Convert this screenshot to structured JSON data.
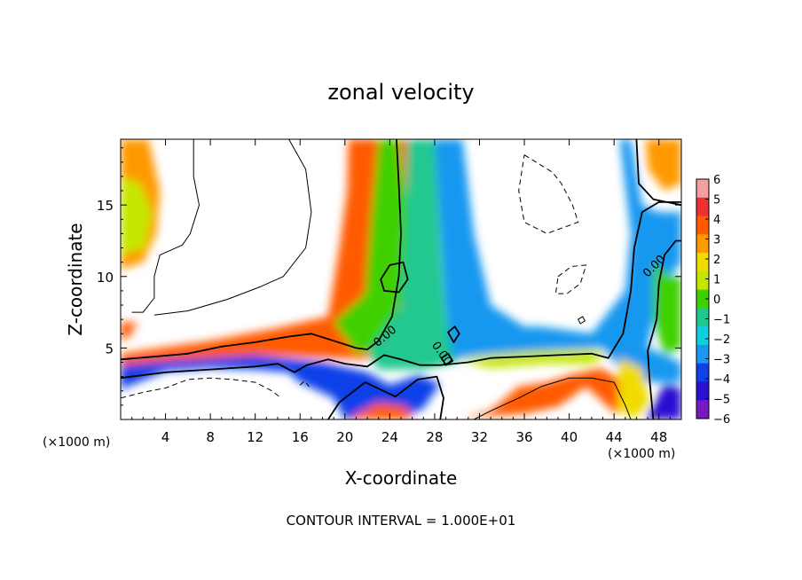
{
  "chart_data": {
    "type": "heatmap",
    "title": "zonal velocity",
    "xlabel": "X-coordinate",
    "ylabel": "Z-coordinate",
    "x_unit": "(×1000 m)",
    "y_unit": "(×1000 m)",
    "xlim": [
      0,
      50
    ],
    "ylim": [
      0,
      19.6
    ],
    "x_ticks": [
      4,
      8,
      12,
      16,
      20,
      24,
      28,
      32,
      36,
      40,
      44,
      48
    ],
    "y_ticks": [
      5,
      10,
      15
    ],
    "contour_interval_text": "CONTOUR INTERVAL = 1.000E+01",
    "contour_labels": [
      "0.00",
      "0.00",
      "0.00"
    ],
    "colorbar": {
      "levels": [
        6,
        5,
        4,
        3,
        2,
        1,
        0,
        -1,
        -2,
        -3,
        -4,
        -5,
        -6
      ],
      "colors": [
        "#f4a0a0",
        "#ee3030",
        "#ff5a00",
        "#ff9900",
        "#f0dc00",
        "#c6e600",
        "#3fd000",
        "#20c890",
        "#10d0e0",
        "#1898f0",
        "#1040e8",
        "#2a10d0",
        "#7a18c0"
      ]
    },
    "regions": [
      {
        "value": 3,
        "points": [
          [
            0,
            19.6
          ],
          [
            2.5,
            19.6
          ],
          [
            3.5,
            16
          ],
          [
            3.2,
            13
          ],
          [
            2,
            11
          ],
          [
            0,
            10.5
          ]
        ]
      },
      {
        "value": 1,
        "points": [
          [
            0,
            17
          ],
          [
            1.8,
            16.5
          ],
          [
            2.8,
            14.5
          ],
          [
            2.2,
            12
          ],
          [
            0,
            11.5
          ]
        ]
      },
      {
        "value": 4,
        "points": [
          [
            0,
            6.8
          ],
          [
            1.5,
            6.8
          ],
          [
            0.8,
            5.8
          ],
          [
            0,
            5.5
          ]
        ]
      },
      {
        "value": 4,
        "points": [
          [
            0,
            4.6
          ],
          [
            8,
            5.5
          ],
          [
            14,
            6.4
          ],
          [
            18.5,
            7.2
          ],
          [
            19.5,
            12
          ],
          [
            20.2,
            16
          ],
          [
            20.3,
            19.6
          ],
          [
            26,
            19.6
          ],
          [
            27,
            15
          ],
          [
            26,
            8
          ],
          [
            22,
            4.2
          ],
          [
            12,
            4.5
          ],
          [
            4,
            4.1
          ],
          [
            0,
            3.8
          ]
        ]
      },
      {
        "value": 0,
        "points": [
          [
            23,
            19.6
          ],
          [
            24.8,
            19.6
          ],
          [
            25.5,
            15
          ],
          [
            25.5,
            9
          ],
          [
            23,
            5
          ],
          [
            21,
            4.6
          ],
          [
            19,
            6.8
          ],
          [
            21.8,
            8.8
          ],
          [
            22.3,
            14
          ]
        ]
      },
      {
        "value": -1,
        "points": [
          [
            25.5,
            19.6
          ],
          [
            28,
            19.6
          ],
          [
            28.5,
            12
          ],
          [
            29,
            7
          ],
          [
            30,
            4
          ],
          [
            27,
            3.5
          ],
          [
            23,
            3.5
          ],
          [
            22,
            4.6
          ],
          [
            25,
            8
          ],
          [
            25.4,
            14
          ]
        ]
      },
      {
        "value": -3,
        "points": [
          [
            28,
            19.6
          ],
          [
            30.5,
            19.6
          ],
          [
            31.5,
            13
          ],
          [
            33,
            8
          ],
          [
            36,
            6.5
          ],
          [
            37.5,
            6.5
          ],
          [
            42,
            6
          ],
          [
            45,
            9
          ],
          [
            45.5,
            13
          ],
          [
            44.5,
            19.6
          ],
          [
            45.5,
            19.6
          ],
          [
            46.5,
            15
          ],
          [
            48,
            14.5
          ],
          [
            50,
            14.5
          ],
          [
            50,
            11
          ],
          [
            48,
            9
          ],
          [
            47,
            5
          ],
          [
            50,
            4
          ],
          [
            50,
            2.6
          ],
          [
            45.5,
            2.6
          ],
          [
            43,
            5
          ],
          [
            37,
            4.8
          ],
          [
            32,
            4.5
          ],
          [
            29.6,
            4.2
          ],
          [
            29,
            7.5
          ],
          [
            28.5,
            13
          ]
        ]
      },
      {
        "value": 3,
        "points": [
          [
            46.8,
            19.6
          ],
          [
            50,
            19.6
          ],
          [
            50,
            16.5
          ],
          [
            48.5,
            16
          ],
          [
            47,
            17.5
          ]
        ]
      },
      {
        "value": 0,
        "points": [
          [
            47.5,
            11
          ],
          [
            49,
            10
          ],
          [
            50,
            10
          ],
          [
            50,
            5
          ],
          [
            48.5,
            4.5
          ],
          [
            47.5,
            7
          ]
        ]
      },
      {
        "value": -4,
        "points": [
          [
            0,
            3.8
          ],
          [
            4,
            4.1
          ],
          [
            12,
            4.5
          ],
          [
            18,
            4
          ],
          [
            22,
            3.3
          ],
          [
            24,
            2.4
          ],
          [
            26.5,
            3.1
          ],
          [
            28.5,
            2.5
          ],
          [
            27,
            0.8
          ],
          [
            25,
            0
          ],
          [
            20,
            0
          ],
          [
            19,
            1.5
          ],
          [
            16,
            2.6
          ],
          [
            15,
            3.3
          ],
          [
            12,
            3.5
          ],
          [
            8,
            3.6
          ],
          [
            4,
            3.4
          ],
          [
            0,
            2.1
          ]
        ]
      },
      {
        "value": 4,
        "points": [
          [
            20.5,
            0
          ],
          [
            26,
            0
          ],
          [
            25.5,
            0.9
          ],
          [
            23,
            1.2
          ],
          [
            21,
            0.4
          ]
        ]
      },
      {
        "value": 4,
        "points": [
          [
            30.5,
            0.1
          ],
          [
            33,
            0.6
          ],
          [
            35.5,
            2.3
          ],
          [
            38,
            2.6
          ],
          [
            40,
            3.1
          ],
          [
            42.8,
            3.6
          ],
          [
            45,
            2.6
          ],
          [
            44.3,
            0.3
          ],
          [
            41.5,
            2.3
          ],
          [
            39,
            0.9
          ],
          [
            36,
            0.4
          ]
        ]
      },
      {
        "value": 1,
        "points": [
          [
            30,
            4.2
          ],
          [
            34,
            4.6
          ],
          [
            37,
            4.8
          ],
          [
            42,
            4.9
          ],
          [
            43.5,
            4.6
          ],
          [
            42,
            3.9
          ],
          [
            38,
            3.9
          ],
          [
            33,
            3.6
          ]
        ]
      },
      {
        "value": 2,
        "points": [
          [
            44.5,
            4.3
          ],
          [
            46.5,
            3.6
          ],
          [
            47.2,
            1.2
          ],
          [
            45.8,
            0
          ],
          [
            44.3,
            0.8
          ]
        ]
      },
      {
        "value": -5,
        "points": [
          [
            46.8,
            0
          ],
          [
            50,
            0
          ],
          [
            50,
            2.2
          ],
          [
            48.5,
            2.5
          ],
          [
            47.5,
            1
          ]
        ]
      }
    ],
    "contours": [
      {
        "style": "solid",
        "width": 1.8,
        "points": [
          [
            0,
            4.2
          ],
          [
            3,
            4.4
          ],
          [
            6,
            4.6
          ],
          [
            9,
            5.1
          ],
          [
            12,
            5.4
          ],
          [
            15,
            5.8
          ],
          [
            17,
            6
          ],
          [
            19,
            5.5
          ],
          [
            21,
            5
          ],
          [
            22,
            4.9
          ],
          [
            23,
            5.5
          ],
          [
            24.2,
            7.2
          ],
          [
            24.8,
            10
          ],
          [
            25,
            13
          ],
          [
            24.8,
            16.5
          ],
          [
            24.6,
            19.6
          ]
        ]
      },
      {
        "style": "solid",
        "width": 1.8,
        "points": [
          [
            0,
            2.9
          ],
          [
            4,
            3.3
          ],
          [
            8,
            3.5
          ],
          [
            12,
            3.7
          ],
          [
            14,
            3.9
          ],
          [
            15.5,
            3.3
          ],
          [
            16.6,
            3.8
          ],
          [
            18.5,
            4.2
          ],
          [
            20,
            3.9
          ],
          [
            22,
            3.7
          ],
          [
            23.5,
            4.5
          ],
          [
            25,
            4.2
          ],
          [
            26.7,
            3.8
          ],
          [
            28.5,
            3.8
          ],
          [
            31,
            4
          ],
          [
            33,
            4.3
          ],
          [
            36,
            4.4
          ],
          [
            39,
            4.5
          ],
          [
            42,
            4.6
          ],
          [
            43.5,
            4.3
          ],
          [
            44.8,
            6
          ],
          [
            45.5,
            9
          ],
          [
            45.8,
            12
          ],
          [
            46.5,
            14.5
          ],
          [
            48,
            15.2
          ],
          [
            50,
            15.2
          ]
        ]
      },
      {
        "style": "solid",
        "width": 1.8,
        "points": [
          [
            18.5,
            0
          ],
          [
            19.5,
            1.2
          ],
          [
            21.8,
            2.6
          ],
          [
            24.5,
            1.6
          ],
          [
            26.5,
            2.8
          ],
          [
            28.2,
            3
          ],
          [
            28.8,
            1.5
          ],
          [
            28.5,
            0
          ]
        ]
      },
      {
        "style": "solid",
        "width": 1.8,
        "points": [
          [
            46,
            19.6
          ],
          [
            46.2,
            16.5
          ],
          [
            47.5,
            15.4
          ],
          [
            50,
            15
          ]
        ]
      },
      {
        "style": "solid",
        "width": 1.8,
        "points": [
          [
            47.5,
            0
          ],
          [
            47.2,
            2.5
          ],
          [
            47,
            4.8
          ],
          [
            47.8,
            7
          ],
          [
            48,
            9.5
          ],
          [
            48.5,
            11.5
          ],
          [
            49.5,
            12.5
          ],
          [
            50,
            12.5
          ]
        ]
      },
      {
        "style": "solid",
        "width": 1.8,
        "closed": true,
        "points": [
          [
            23.2,
            9.8
          ],
          [
            24,
            10.8
          ],
          [
            25.2,
            11
          ],
          [
            25.6,
            9.8
          ],
          [
            24.8,
            8.9
          ],
          [
            23.5,
            9
          ]
        ]
      },
      {
        "style": "solid",
        "width": 1.8,
        "closed": true,
        "points": [
          [
            29.2,
            6.1
          ],
          [
            29.8,
            6.5
          ],
          [
            30.2,
            6
          ],
          [
            29.7,
            5.4
          ]
        ]
      },
      {
        "style": "solid",
        "width": 1.8,
        "closed": true,
        "points": [
          [
            28.6,
            4.3
          ],
          [
            29.2,
            4.6
          ],
          [
            29.6,
            4.1
          ],
          [
            29,
            3.8
          ]
        ]
      },
      {
        "style": "solid",
        "width": 1.0,
        "points": [
          [
            6.5,
            19.6
          ],
          [
            6.5,
            17
          ],
          [
            7,
            15
          ],
          [
            6.2,
            13
          ],
          [
            5.5,
            12.2
          ],
          [
            3.5,
            11.5
          ],
          [
            3,
            10
          ],
          [
            3,
            8.5
          ],
          [
            2,
            7.5
          ],
          [
            1,
            7.5
          ]
        ]
      },
      {
        "style": "solid",
        "width": 1.0,
        "points": [
          [
            15,
            19.6
          ],
          [
            16.5,
            17.5
          ],
          [
            17,
            14.5
          ],
          [
            16.5,
            12
          ],
          [
            14.5,
            10
          ],
          [
            12.5,
            9.3
          ],
          [
            9.5,
            8.4
          ],
          [
            6,
            7.6
          ],
          [
            3,
            7.3
          ]
        ]
      },
      {
        "style": "solid",
        "width": 1.0,
        "points": [
          [
            31.5,
            0
          ],
          [
            33,
            0.6
          ],
          [
            35.5,
            1.5
          ],
          [
            37.5,
            2.3
          ],
          [
            40,
            2.9
          ],
          [
            42,
            2.9
          ],
          [
            44,
            2.6
          ],
          [
            45,
            1
          ],
          [
            45.5,
            0
          ]
        ]
      },
      {
        "style": "solid",
        "width": 1.0,
        "closed": true,
        "points": [
          [
            40.8,
            7
          ],
          [
            41.2,
            7.2
          ],
          [
            41.4,
            6.9
          ],
          [
            41,
            6.7
          ]
        ]
      },
      {
        "style": "dashed",
        "width": 1.0,
        "closed": true,
        "points": [
          [
            36,
            18.5
          ],
          [
            38.5,
            17.3
          ],
          [
            39.3,
            16.5
          ],
          [
            40.3,
            15
          ],
          [
            40.8,
            13.8
          ],
          [
            38,
            13
          ],
          [
            36,
            13.8
          ],
          [
            35.5,
            16
          ]
        ]
      },
      {
        "style": "dashed",
        "width": 1.0,
        "closed": true,
        "points": [
          [
            39,
            10
          ],
          [
            40.2,
            10.7
          ],
          [
            41.5,
            10.8
          ],
          [
            41,
            9.5
          ],
          [
            39.8,
            8.8
          ],
          [
            38.8,
            8.8
          ]
        ]
      },
      {
        "style": "dashed",
        "width": 1.0,
        "points": [
          [
            0,
            1.5
          ],
          [
            2,
            1.9
          ],
          [
            4,
            2.2
          ],
          [
            6,
            2.8
          ],
          [
            8,
            2.9
          ],
          [
            10,
            2.8
          ],
          [
            12,
            2.6
          ],
          [
            13.5,
            2
          ],
          [
            14.3,
            1.5
          ]
        ]
      },
      {
        "style": "dashed",
        "width": 1.0,
        "points": [
          [
            16,
            2.4
          ],
          [
            16.4,
            2.7
          ],
          [
            16.8,
            2.3
          ]
        ]
      }
    ],
    "label_positions": [
      {
        "x": 23.6,
        "y": 5.8,
        "angle": -40
      },
      {
        "x": 28.6,
        "y": 4.6,
        "angle": 55
      },
      {
        "x": 47.6,
        "y": 10.7,
        "angle": -45
      }
    ]
  }
}
